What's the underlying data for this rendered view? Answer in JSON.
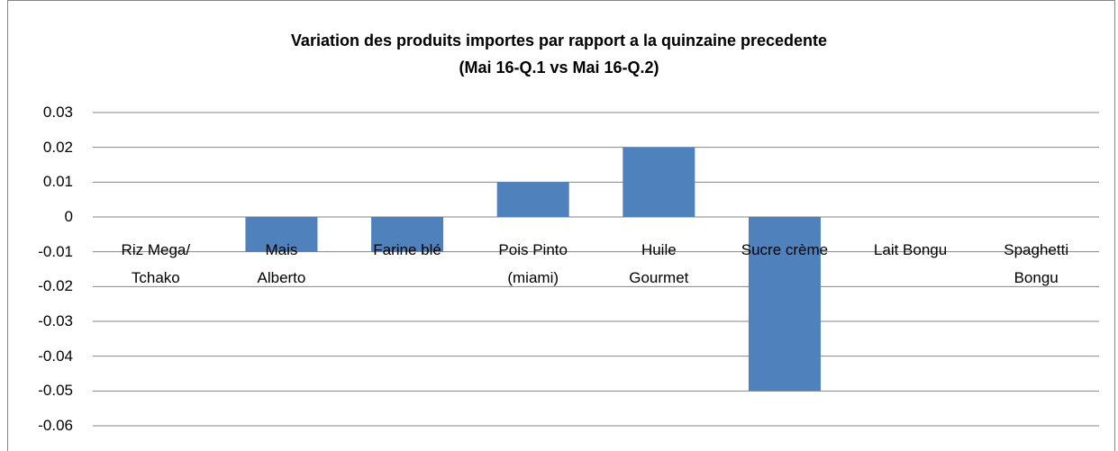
{
  "chart_data": {
    "type": "bar",
    "title": "Variation des produits importes par rapport a la quinzaine precedente",
    "subtitle": "(Mai 16-Q.1 vs Mai 16-Q.2)",
    "categories": [
      "Riz Mega/\nTchako",
      "Mais\nAlberto",
      "Farine blé",
      "Pois Pinto\n(miami)",
      "Huile\nGourmet",
      "Sucre crème",
      "Lait Bongu",
      "Spaghetti\nBongu"
    ],
    "values": [
      0,
      -0.01,
      -0.01,
      0.01,
      0.02,
      -0.05,
      0,
      0
    ],
    "color": "#4f81bd",
    "ylim": [
      -0.06,
      0.03
    ],
    "yticks": [
      -0.06,
      -0.05,
      -0.04,
      -0.03,
      -0.02,
      -0.01,
      0,
      0.01,
      0.02,
      0.03
    ],
    "grid": true
  }
}
